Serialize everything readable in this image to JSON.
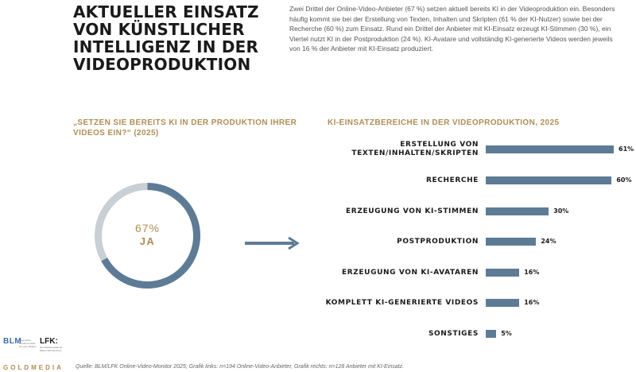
{
  "title": "AKTUELLER EINSATZ VON KÜNSTLICHER INTELLIGENZ IN DER VIDEOPRODUKTION",
  "intro": "Zwei Drittel der Online-Video-Anbieter (67 %) setzen aktuell bereits KI in der Videoproduktion ein. Besonders häufig kommt sie bei der Erstellung von Texten, Inhalten und Skripten (61 % der KI-Nutzer) sowie bei der Recherche (60 %) zum Einsatz. Rund ein Drittel der Anbieter mit KI-Einsatz erzeugt KI-Stimmen (30 %), ein Viertel nutzt KI in der Postproduktion (24 %). KI-Avatare und vollständig KI-generierte Videos werden jeweils von 16 % der Anbieter mit KI-Einsatz produziert.",
  "left_subtitle": "„SETZEN SIE BEREITS KI IN DER PRODUKTION IHRER VIDEOS EIN?“ (2025)",
  "right_subtitle": "KI-EINSATZBEREICHE IN DER VIDEOPRODUKTION, 2025",
  "colors": {
    "accent": "#b08d55",
    "bar": "#5e7b96",
    "donut_bg": "#c8d0d6"
  },
  "chart_data": [
    {
      "type": "pie",
      "title": "„SETZEN SIE BEREITS KI IN DER PRODUKTION IHRER VIDEOS EIN?“ (2025)",
      "values": [
        67,
        33
      ],
      "categories": [
        "JA",
        ""
      ],
      "center_value": "67%",
      "center_label": "JA"
    },
    {
      "type": "bar",
      "orientation": "horizontal",
      "title": "KI-EINSATZBEREICHE IN DER VIDEOPRODUKTION, 2025",
      "categories": [
        "ERSTELLUNG VON TEXTEN/INHALTEN/SKRIPTEN",
        "RECHERCHE",
        "ERZEUGUNG VON KI-STIMMEN",
        "POSTPRODUKTION",
        "ERZEUGUNG VON KI-AVATAREN",
        "KOMPLETT KI-GENERIERTE VIDEOS",
        "SONSTIGES"
      ],
      "values": [
        61,
        60,
        30,
        24,
        16,
        16,
        5
      ],
      "value_labels": [
        "61%",
        "60%",
        "30%",
        "24%",
        "16%",
        "16%",
        "5%"
      ],
      "xlim": [
        0,
        61
      ]
    }
  ],
  "footer": {
    "logo_blm": "BLM",
    "logo_blm_sub": "Bayerische Landeszentrale für neue Medien",
    "logo_lfk": "LFK:",
    "logo_lfk_sub": "Die Medienanstalt für Baden-Württemberg",
    "brand": "GOLDMEDIA",
    "source": "Quelle: BLM/LFK Online-Video-Monitor 2025; Grafik links: n=194 Online-Video-Anbieter, Grafik rechts: n=128 Anbieter mit KI-Einsatz."
  }
}
